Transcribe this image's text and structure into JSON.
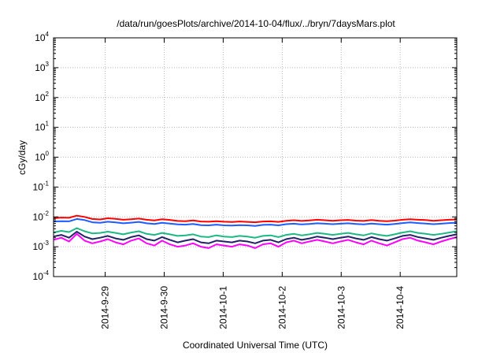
{
  "chart_data": {
    "type": "line",
    "title": "/data/run/goesPlots/archive/2014-10-04/flux/../bryn/7daysMars.plot",
    "xlabel": "Coordinated Universal Time (UTC)",
    "ylabel": "cGy/day",
    "yscale": "log",
    "ylim": [
      0.0001,
      10000
    ],
    "y_ticks": [
      {
        "base": "10",
        "exp": "-4"
      },
      {
        "base": "10",
        "exp": "-3"
      },
      {
        "base": "10",
        "exp": "-2"
      },
      {
        "base": "10",
        "exp": "-1"
      },
      {
        "base": "10",
        "exp": "0"
      },
      {
        "base": "10",
        "exp": "1"
      },
      {
        "base": "10",
        "exp": "2"
      },
      {
        "base": "10",
        "exp": "3"
      },
      {
        "base": "10",
        "exp": "4"
      }
    ],
    "x_start": "2014-09-28T03:00",
    "x_end": "2014-10-04T23:00",
    "x_ticks": [
      "2014-9-29",
      "2014-9-30",
      "2014-10-1",
      "2014-10-2",
      "2014-10-3",
      "2014-10-4"
    ],
    "grid": true,
    "series": [
      {
        "color": "#ff0000",
        "values": [
          0.009,
          0.0095,
          0.0093,
          0.011,
          0.01,
          0.0085,
          0.0082,
          0.009,
          0.0086,
          0.008,
          0.0083,
          0.0088,
          0.008,
          0.0076,
          0.0083,
          0.0079,
          0.0073,
          0.0072,
          0.0076,
          0.007,
          0.0069,
          0.0072,
          0.0069,
          0.0067,
          0.007,
          0.0068,
          0.0066,
          0.007,
          0.0071,
          0.0068,
          0.0074,
          0.0077,
          0.0073,
          0.0076,
          0.008,
          0.0077,
          0.0074,
          0.0077,
          0.0079,
          0.0075,
          0.0073,
          0.0078,
          0.0074,
          0.0072,
          0.0075,
          0.008,
          0.0083,
          0.008,
          0.0078,
          0.0074,
          0.0077,
          0.008,
          0.0082
        ]
      },
      {
        "color": "#1e5cff",
        "values": [
          0.007,
          0.0072,
          0.0071,
          0.0085,
          0.0078,
          0.0066,
          0.0063,
          0.0069,
          0.0065,
          0.0061,
          0.0064,
          0.0068,
          0.0061,
          0.0058,
          0.0063,
          0.006,
          0.0056,
          0.0055,
          0.0058,
          0.0053,
          0.0052,
          0.0055,
          0.0052,
          0.0051,
          0.0053,
          0.0052,
          0.005,
          0.0054,
          0.0055,
          0.0052,
          0.0057,
          0.0059,
          0.0056,
          0.0058,
          0.0061,
          0.0059,
          0.0057,
          0.0059,
          0.0061,
          0.0058,
          0.0056,
          0.006,
          0.0057,
          0.0055,
          0.0058,
          0.0062,
          0.0065,
          0.0062,
          0.006,
          0.0057,
          0.0059,
          0.0062,
          0.0064
        ]
      },
      {
        "color": "#1db885",
        "values": [
          0.003,
          0.0034,
          0.0031,
          0.0042,
          0.0033,
          0.0028,
          0.0029,
          0.0032,
          0.0029,
          0.0026,
          0.003,
          0.0033,
          0.0027,
          0.0025,
          0.0029,
          0.0026,
          0.0023,
          0.0024,
          0.0026,
          0.0022,
          0.0021,
          0.0024,
          0.0022,
          0.0021,
          0.0023,
          0.0022,
          0.002,
          0.0023,
          0.0024,
          0.0021,
          0.0025,
          0.0027,
          0.0024,
          0.0026,
          0.0029,
          0.0027,
          0.0025,
          0.0027,
          0.0029,
          0.0026,
          0.0024,
          0.0028,
          0.0025,
          0.0023,
          0.0026,
          0.003,
          0.0033,
          0.0029,
          0.0027,
          0.0025,
          0.0027,
          0.003,
          0.0033
        ]
      },
      {
        "color": "#222266",
        "values": [
          0.0022,
          0.0025,
          0.002,
          0.0032,
          0.0022,
          0.0018,
          0.002,
          0.0023,
          0.0019,
          0.0017,
          0.0021,
          0.0024,
          0.0018,
          0.0016,
          0.0021,
          0.0017,
          0.0014,
          0.0016,
          0.0018,
          0.0014,
          0.0013,
          0.0016,
          0.0015,
          0.0014,
          0.0016,
          0.0015,
          0.0013,
          0.0016,
          0.0017,
          0.0014,
          0.0018,
          0.002,
          0.0017,
          0.0019,
          0.0022,
          0.002,
          0.0018,
          0.002,
          0.0022,
          0.0019,
          0.0017,
          0.0021,
          0.0018,
          0.0016,
          0.0019,
          0.0023,
          0.0025,
          0.0021,
          0.0019,
          0.0017,
          0.002,
          0.0023,
          0.0026
        ]
      },
      {
        "color": "#ff00ff",
        "values": [
          0.0017,
          0.002,
          0.0015,
          0.0027,
          0.0016,
          0.0013,
          0.0015,
          0.0018,
          0.0014,
          0.0012,
          0.0016,
          0.0019,
          0.0013,
          0.0011,
          0.0016,
          0.0012,
          0.001,
          0.0011,
          0.0013,
          0.001,
          0.0009,
          0.0012,
          0.0011,
          0.001,
          0.0012,
          0.0011,
          0.0009,
          0.0012,
          0.0013,
          0.001,
          0.0014,
          0.0016,
          0.0013,
          0.0015,
          0.0017,
          0.0015,
          0.0013,
          0.0015,
          0.0017,
          0.0014,
          0.0012,
          0.0016,
          0.0013,
          0.0011,
          0.0014,
          0.0018,
          0.002,
          0.0016,
          0.0014,
          0.0012,
          0.0015,
          0.0018,
          0.0021
        ]
      }
    ]
  }
}
